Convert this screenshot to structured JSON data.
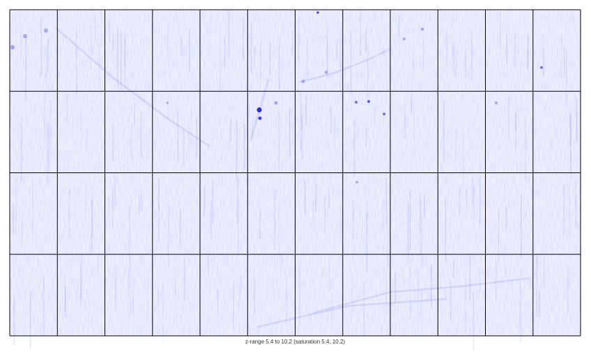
{
  "chart_data": {
    "type": "heatmap",
    "title": "",
    "xlabel": "",
    "ylabel": "",
    "panels": {
      "rows": 4,
      "columns": 12
    },
    "z_range": [
      5.4,
      10.2
    ],
    "saturation": [
      5.4,
      10.2
    ],
    "colormap": {
      "low": "#ffffff",
      "high": "#0000ff"
    },
    "caption": "z-range 5.4 to 10.2 (saturation 5.4, 10.2)",
    "grid": true
  }
}
